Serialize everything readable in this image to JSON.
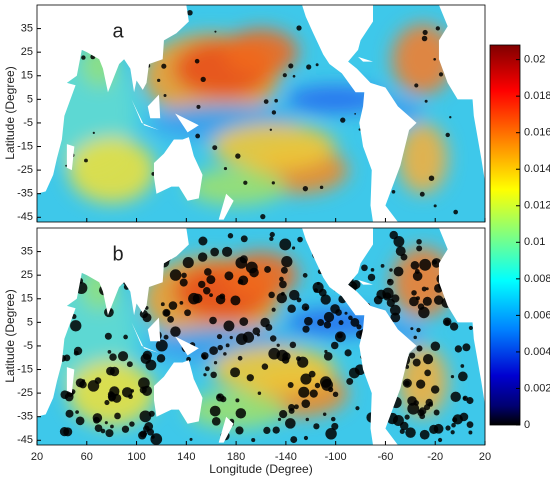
{
  "panels": [
    {
      "label": "a"
    },
    {
      "label": "b"
    }
  ],
  "x_axis": {
    "label": "Longitude (Degree)",
    "lim": [
      20,
      380
    ],
    "ticks": [
      20,
      60,
      100,
      140,
      180,
      {
        "value": 220,
        "label": "-140"
      },
      {
        "value": 260,
        "label": "-100"
      },
      {
        "value": 300,
        "label": "-60"
      },
      {
        "value": 340,
        "label": "-20"
      },
      {
        "value": 380,
        "label": "20"
      }
    ]
  },
  "y_axis": {
    "label": "Latitude (Degree)",
    "lim": [
      -47,
      45
    ],
    "ticks": [
      35,
      25,
      15,
      5,
      -5,
      -15,
      -25,
      -35,
      -45
    ]
  },
  "colorbar": {
    "lim": [
      0,
      0.0208
    ],
    "ticks": [
      0,
      0.002,
      0.004,
      0.006,
      0.008,
      0.01,
      0.012,
      0.014,
      0.016,
      0.018,
      0.02
    ]
  }
}
